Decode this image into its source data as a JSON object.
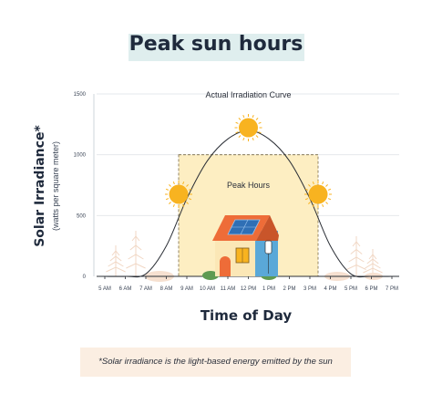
{
  "chart_data": {
    "type": "area",
    "title": "Peak sun hours",
    "ylabel": "Solar Irradiance*",
    "ylabel_sub": "(watts per square meter)",
    "xlabel": "Time of Day",
    "categories": [
      "5 AM",
      "6 AM",
      "7 AM",
      "8 AM",
      "9 AM",
      "10 AM",
      "11 AM",
      "12 PM",
      "1 PM",
      "2 PM",
      "3 PM",
      "4 PM",
      "5 PM",
      "6 PM",
      "7 PM"
    ],
    "series": [
      {
        "name": "Actual Irradiation Curve",
        "values": [
          0,
          0,
          20,
          250,
          640,
          950,
          1130,
          1200,
          1130,
          950,
          640,
          250,
          20,
          0,
          0
        ]
      }
    ],
    "yticks": [
      0,
      500,
      1000,
      1500
    ],
    "ylim": [
      0,
      1500
    ],
    "peak_hours": {
      "label": "Peak Hours",
      "start": "9 AM",
      "end": "3 PM",
      "level": 1000
    },
    "annotations": [
      "Actual Irradiation Curve",
      "Peak Hours"
    ],
    "grid": true,
    "colors": {
      "curve": "#2b2f36",
      "peak_fill": "#fdeec2",
      "sun": "#f8b320",
      "grid": "#e6e8ec",
      "house_wall": "#5aa8d8",
      "roof": "#ee6c38"
    }
  },
  "footnote": "*Solar irradiance is the light-based energy emitted by the sun"
}
